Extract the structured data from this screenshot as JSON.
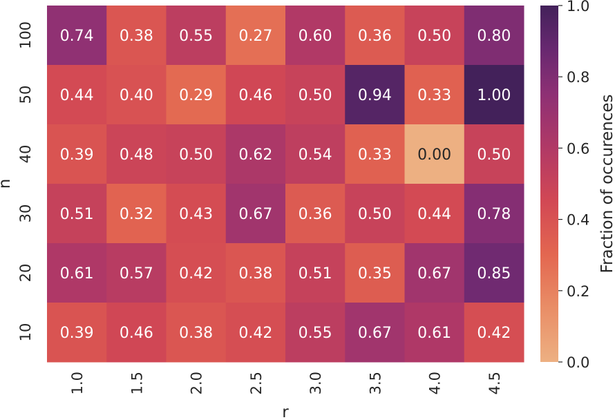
{
  "chart_data": {
    "type": "heatmap",
    "xlabel": "r",
    "ylabel": "n",
    "x_categories": [
      "1.0",
      "1.5",
      "2.0",
      "2.5",
      "3.0",
      "3.5",
      "4.0",
      "4.5"
    ],
    "y_categories": [
      "100",
      "50",
      "40",
      "30",
      "20",
      "10"
    ],
    "values": [
      [
        0.74,
        0.38,
        0.55,
        0.27,
        0.6,
        0.36,
        0.5,
        0.8
      ],
      [
        0.44,
        0.4,
        0.29,
        0.46,
        0.5,
        0.94,
        0.33,
        1.0
      ],
      [
        0.39,
        0.48,
        0.5,
        0.62,
        0.54,
        0.33,
        0.0,
        0.5
      ],
      [
        0.51,
        0.32,
        0.43,
        0.67,
        0.36,
        0.5,
        0.44,
        0.78
      ],
      [
        0.61,
        0.57,
        0.42,
        0.38,
        0.51,
        0.35,
        0.67,
        0.85
      ],
      [
        0.39,
        0.46,
        0.38,
        0.42,
        0.55,
        0.67,
        0.61,
        0.42
      ]
    ],
    "value_format": "0.00",
    "colormap": "flare",
    "vmin": 0.0,
    "vmax": 1.0,
    "colorbar": {
      "label": "Fraction of occurences",
      "ticks": [
        "0.0",
        "0.2",
        "0.4",
        "0.6",
        "0.8",
        "1.0"
      ],
      "tick_values": [
        0.0,
        0.2,
        0.4,
        0.6,
        0.8,
        1.0
      ]
    },
    "grid": false
  }
}
